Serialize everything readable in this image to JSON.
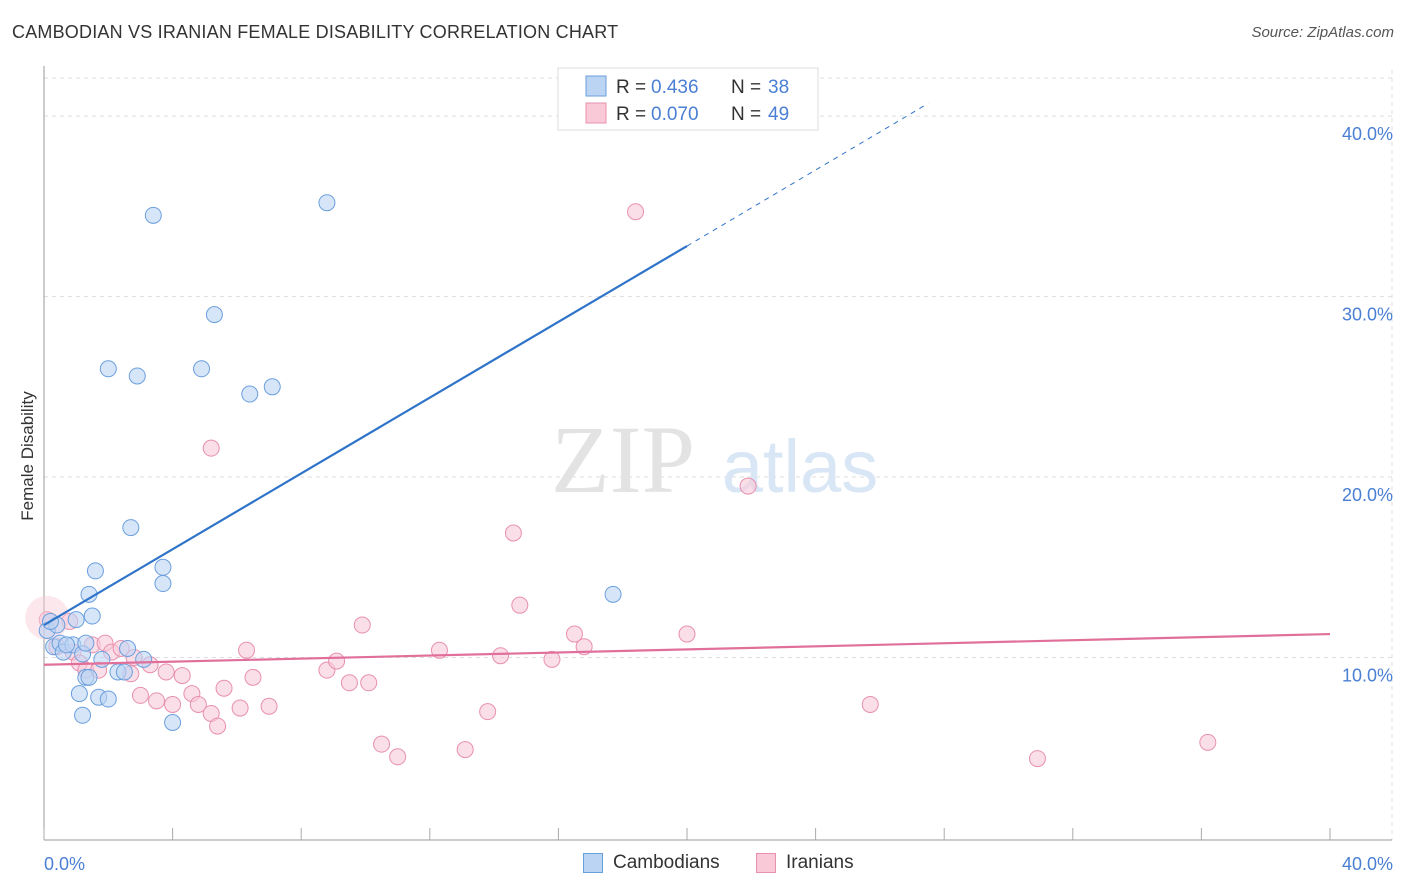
{
  "header": {
    "title": "CAMBODIAN VS IRANIAN FEMALE DISABILITY CORRELATION CHART",
    "source": "Source: ZipAtlas.com"
  },
  "watermark": {
    "part1": "ZIP",
    "part2": "atlas"
  },
  "legend_box": {
    "rows": [
      {
        "r_label": "R =",
        "r_value": "0.436",
        "n_label": "N =",
        "n_value": "38"
      },
      {
        "r_label": "R =",
        "r_value": "0.070",
        "n_label": "N =",
        "n_value": "49"
      }
    ]
  },
  "bottom_legend": {
    "items": [
      "Cambodians",
      "Iranians"
    ]
  },
  "colors": {
    "cambodians_fill": "#bcd4f4",
    "cambodians_stroke": "#6a9fde",
    "cambodians_line": "#2f74c8",
    "iranians_fill": "#f9c9d8",
    "iranians_stroke": "#e890ae",
    "iranians_line": "#e0709a",
    "tick_text": "#4a7fd4",
    "grid": "#dddddd"
  },
  "chart_data": {
    "type": "scatter",
    "title": "CAMBODIAN VS IRANIAN FEMALE DISABILITY CORRELATION CHART",
    "xlabel": "",
    "ylabel": "Female Disability",
    "xlim": [
      0,
      40
    ],
    "ylim": [
      0,
      42
    ],
    "x_tick_labels": [
      "0.0%",
      "40.0%"
    ],
    "y_ticks": [
      10,
      20,
      30,
      40
    ],
    "y_tick_labels": [
      "10.0%",
      "20.0%",
      "30.0%",
      "40.0%"
    ],
    "grid": true,
    "legend_position": "top-center",
    "series": [
      {
        "name": "Cambodians",
        "r": 0.436,
        "n": 38,
        "trend": {
          "x": [
            0,
            20
          ],
          "y": [
            11.8,
            32.8
          ],
          "dashed_extension_to": [
            27.5,
            40.7
          ]
        },
        "points": [
          [
            0.1,
            11.5
          ],
          [
            0.3,
            10.6
          ],
          [
            0.4,
            11.8
          ],
          [
            0.5,
            10.8
          ],
          [
            0.6,
            10.3
          ],
          [
            0.9,
            10.7
          ],
          [
            1.0,
            12.1
          ],
          [
            1.1,
            8.0
          ],
          [
            1.2,
            10.2
          ],
          [
            1.5,
            12.3
          ],
          [
            1.3,
            10.8
          ],
          [
            1.8,
            9.9
          ],
          [
            1.4,
            13.5
          ],
          [
            1.6,
            14.8
          ],
          [
            1.2,
            6.8
          ],
          [
            1.7,
            7.8
          ],
          [
            1.3,
            8.9
          ],
          [
            1.4,
            8.9
          ],
          [
            2.0,
            7.7
          ],
          [
            2.3,
            9.2
          ],
          [
            2.5,
            9.2
          ],
          [
            2.6,
            10.5
          ],
          [
            3.1,
            9.9
          ],
          [
            2.0,
            26.0
          ],
          [
            2.9,
            25.6
          ],
          [
            2.7,
            17.2
          ],
          [
            3.4,
            34.5
          ],
          [
            3.7,
            15.0
          ],
          [
            3.7,
            14.1
          ],
          [
            4.0,
            6.4
          ],
          [
            4.9,
            26.0
          ],
          [
            5.3,
            29.0
          ],
          [
            6.4,
            24.6
          ],
          [
            7.1,
            25.0
          ],
          [
            8.8,
            35.2
          ],
          [
            17.7,
            13.5
          ],
          [
            0.2,
            12.0
          ],
          [
            0.7,
            10.7
          ]
        ]
      },
      {
        "name": "Iranians",
        "r": 0.07,
        "n": 49,
        "trend": {
          "x": [
            0,
            40
          ],
          "y": [
            9.6,
            11.3
          ]
        },
        "points": [
          [
            0.1,
            12.1
          ],
          [
            0.4,
            10.6
          ],
          [
            0.8,
            12.0
          ],
          [
            0.9,
            10.3
          ],
          [
            1.1,
            9.7
          ],
          [
            1.3,
            9.3
          ],
          [
            1.5,
            10.7
          ],
          [
            1.7,
            9.3
          ],
          [
            1.9,
            10.8
          ],
          [
            2.1,
            10.3
          ],
          [
            2.4,
            10.5
          ],
          [
            2.7,
            9.1
          ],
          [
            2.8,
            10.0
          ],
          [
            3.0,
            7.9
          ],
          [
            3.3,
            9.6
          ],
          [
            3.5,
            7.6
          ],
          [
            3.8,
            9.2
          ],
          [
            4.0,
            7.4
          ],
          [
            4.3,
            9.0
          ],
          [
            4.6,
            8.0
          ],
          [
            4.8,
            7.4
          ],
          [
            5.2,
            6.9
          ],
          [
            5.4,
            6.2
          ],
          [
            5.6,
            8.3
          ],
          [
            6.1,
            7.2
          ],
          [
            6.3,
            10.4
          ],
          [
            6.5,
            8.9
          ],
          [
            7.0,
            7.3
          ],
          [
            8.8,
            9.3
          ],
          [
            9.1,
            9.8
          ],
          [
            9.5,
            8.6
          ],
          [
            9.9,
            11.8
          ],
          [
            10.1,
            8.6
          ],
          [
            10.5,
            5.2
          ],
          [
            11.0,
            4.5
          ],
          [
            12.3,
            10.4
          ],
          [
            13.1,
            4.9
          ],
          [
            13.8,
            7.0
          ],
          [
            14.2,
            10.1
          ],
          [
            14.6,
            16.9
          ],
          [
            14.8,
            12.9
          ],
          [
            15.8,
            9.9
          ],
          [
            16.5,
            11.3
          ],
          [
            16.8,
            10.6
          ],
          [
            18.4,
            34.7
          ],
          [
            20.0,
            11.3
          ],
          [
            25.7,
            7.4
          ],
          [
            30.9,
            4.4
          ],
          [
            36.2,
            5.3
          ]
        ],
        "extra_points": [
          [
            5.2,
            21.6
          ],
          [
            21.9,
            19.5
          ]
        ]
      }
    ]
  }
}
